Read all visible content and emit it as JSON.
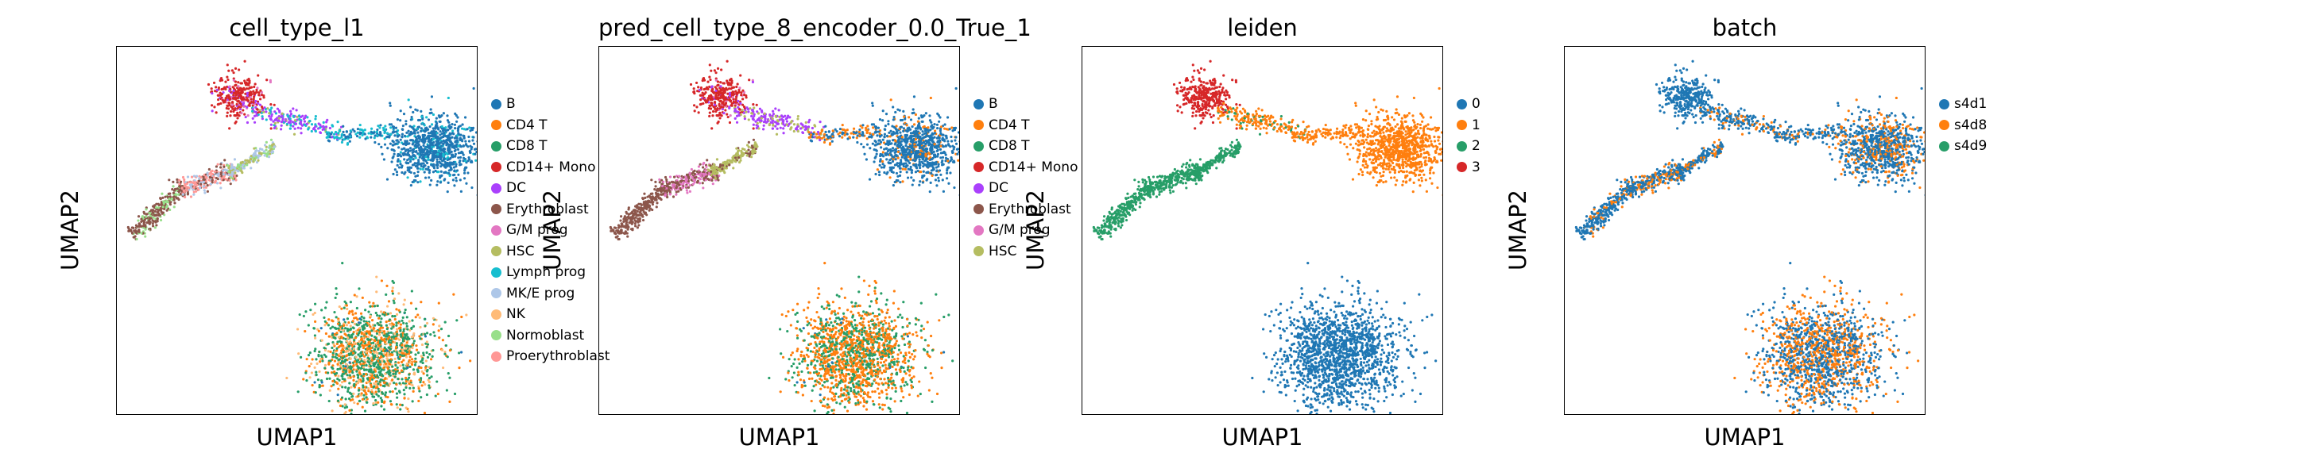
{
  "chart_data": [
    {
      "type": "scatter",
      "title": "cell_type_l1",
      "xlabel": "UMAP1",
      "ylabel": "UMAP2",
      "grid": false,
      "legend_placement": "right",
      "legend": [
        {
          "label": "B",
          "color": "#1f77b4"
        },
        {
          "label": "CD4 T",
          "color": "#ff7f0e"
        },
        {
          "label": "CD8 T",
          "color": "#279e68"
        },
        {
          "label": "CD14+ Mono",
          "color": "#d62728"
        },
        {
          "label": "DC",
          "color": "#aa40fc"
        },
        {
          "label": "Erythroblast",
          "color": "#8c564b"
        },
        {
          "label": "G/M prog",
          "color": "#e377c2"
        },
        {
          "label": "HSC",
          "color": "#b5bd61"
        },
        {
          "label": "Lymph prog",
          "color": "#17becf"
        },
        {
          "label": "MK/E prog",
          "color": "#aec7e8"
        },
        {
          "label": "NK",
          "color": "#ffbb78"
        },
        {
          "label": "Normoblast",
          "color": "#98df8a"
        },
        {
          "label": "Proerythroblast",
          "color": "#ff9896"
        }
      ],
      "clusters": {
        "mono": {
          "CD14+ Mono": 0.78,
          "DC": 0.14,
          "G/M prog": 0.08
        },
        "bcells": {
          "B": 0.9,
          "Lymph prog": 0.1
        },
        "tnk": {
          "CD8 T": 0.5,
          "CD4 T": 0.3,
          "NK": 0.18,
          "B": 0.02
        },
        "ery_far": {
          "Erythroblast": 0.75,
          "Normoblast": 0.25
        },
        "ery_mid": {
          "Proerythroblast": 0.55,
          "Erythroblast": 0.3,
          "MK/E prog": 0.15
        },
        "ery_near": {
          "MK/E prog": 0.4,
          "HSC": 0.35,
          "Normoblast": 0.25
        },
        "bridge": {
          "DC": 0.55,
          "Lymph prog": 0.3,
          "HSC": 0.15
        },
        "bridge2": {
          "Lymph prog": 0.6,
          "B": 0.4
        }
      }
    },
    {
      "type": "scatter",
      "title": "pred_cell_type_8_encoder_0.0_True_1",
      "xlabel": "UMAP1",
      "ylabel": "UMAP2",
      "grid": false,
      "legend_placement": "right",
      "legend": [
        {
          "label": "B",
          "color": "#1f77b4"
        },
        {
          "label": "CD4 T",
          "color": "#ff7f0e"
        },
        {
          "label": "CD8 T",
          "color": "#279e68"
        },
        {
          "label": "CD14+ Mono",
          "color": "#d62728"
        },
        {
          "label": "DC",
          "color": "#aa40fc"
        },
        {
          "label": "Erythroblast",
          "color": "#8c564b"
        },
        {
          "label": "G/M prog",
          "color": "#e377c2"
        },
        {
          "label": "HSC",
          "color": "#b5bd61"
        }
      ],
      "clusters": {
        "mono": {
          "CD14+ Mono": 0.85,
          "DC": 0.1,
          "G/M prog": 0.05
        },
        "bcells": {
          "B": 0.88,
          "CD4 T": 0.12
        },
        "tnk": {
          "CD4 T": 0.6,
          "CD8 T": 0.38,
          "B": 0.02
        },
        "ery_far": {
          "Erythroblast": 1.0
        },
        "ery_mid": {
          "Erythroblast": 0.6,
          "G/M prog": 0.4
        },
        "ery_near": {
          "HSC": 0.75,
          "Erythroblast": 0.25
        },
        "bridge": {
          "DC": 0.7,
          "HSC": 0.3
        },
        "bridge2": {
          "CD4 T": 0.6,
          "B": 0.4
        }
      }
    },
    {
      "type": "scatter",
      "title": "leiden",
      "xlabel": "UMAP1",
      "ylabel": "UMAP2",
      "grid": false,
      "legend_placement": "right",
      "legend": [
        {
          "label": "0",
          "color": "#1f77b4"
        },
        {
          "label": "1",
          "color": "#ff7f0e"
        },
        {
          "label": "2",
          "color": "#279e68"
        },
        {
          "label": "3",
          "color": "#d62728"
        }
      ],
      "clusters": {
        "mono": {
          "3": 1.0
        },
        "bcells": {
          "1": 1.0
        },
        "tnk": {
          "0": 1.0
        },
        "ery_far": {
          "2": 1.0
        },
        "ery_mid": {
          "2": 1.0
        },
        "ery_near": {
          "2": 1.0
        },
        "bridge": {
          "1": 0.8,
          "2": 0.2
        },
        "bridge2": {
          "1": 1.0
        }
      }
    },
    {
      "type": "scatter",
      "title": "batch",
      "xlabel": "UMAP1",
      "ylabel": "UMAP2",
      "grid": false,
      "legend_placement": "right",
      "legend": [
        {
          "label": "s4d1",
          "color": "#1f77b4"
        },
        {
          "label": "s4d8",
          "color": "#ff7f0e"
        },
        {
          "label": "s4d9",
          "color": "#279e68"
        }
      ],
      "clusters": {
        "mono": {
          "s4d1": 1.0
        },
        "bcells": {
          "s4d1": 0.7,
          "s4d8": 0.3
        },
        "tnk": {
          "s4d1": 0.55,
          "s4d8": 0.45
        },
        "ery_far": {
          "s4d1": 0.85,
          "s4d8": 0.15
        },
        "ery_mid": {
          "s4d1": 0.7,
          "s4d8": 0.3
        },
        "ery_near": {
          "s4d1": 0.7,
          "s4d8": 0.3
        },
        "bridge": {
          "s4d1": 0.75,
          "s4d8": 0.25
        },
        "bridge2": {
          "s4d1": 0.8,
          "s4d8": 0.2
        }
      }
    }
  ]
}
